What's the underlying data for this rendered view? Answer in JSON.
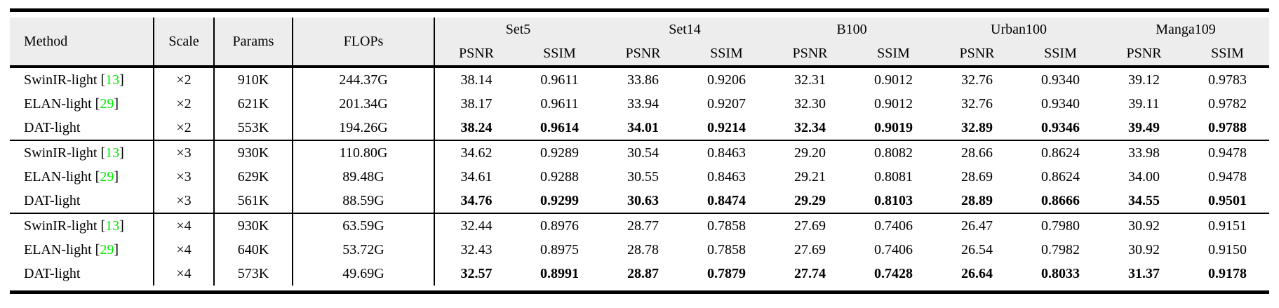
{
  "page": {
    "background": "#ffffff"
  },
  "colors": {
    "header_bg": "#ededed",
    "rule": "#000000",
    "text": "#000000",
    "citation_green": "#00ee00"
  },
  "table": {
    "columns": {
      "method": "Method",
      "scale": "Scale",
      "params": "Params",
      "flops": "FLOPs"
    },
    "dataset_groups": [
      "Set5",
      "Set14",
      "B100",
      "Urban100",
      "Manga109"
    ],
    "metrics": [
      "PSNR",
      "SSIM"
    ],
    "groups": [
      {
        "scale_factor": "×2",
        "rows": [
          {
            "method": "SwinIR-light",
            "cite_open": " [",
            "cite": "13",
            "cite_close": "]",
            "scale": "×2",
            "params": "910K",
            "flops": "244.37G",
            "best": false,
            "values": [
              "38.14",
              "0.9611",
              "33.86",
              "0.9206",
              "32.31",
              "0.9012",
              "32.76",
              "0.9340",
              "39.12",
              "0.9783"
            ]
          },
          {
            "method": "ELAN-light",
            "cite_open": " [",
            "cite": "29",
            "cite_close": "]",
            "scale": "×2",
            "params": "621K",
            "flops": "201.34G",
            "best": false,
            "values": [
              "38.17",
              "0.9611",
              "33.94",
              "0.9207",
              "32.30",
              "0.9012",
              "32.76",
              "0.9340",
              "39.11",
              "0.9782"
            ]
          },
          {
            "method": "DAT-light",
            "scale": "×2",
            "params": "553K",
            "flops": "194.26G",
            "best": true,
            "values": [
              "38.24",
              "0.9614",
              "34.01",
              "0.9214",
              "32.34",
              "0.9019",
              "32.89",
              "0.9346",
              "39.49",
              "0.9788"
            ]
          }
        ]
      },
      {
        "scale_factor": "×3",
        "rows": [
          {
            "method": "SwinIR-light",
            "cite_open": " [",
            "cite": "13",
            "cite_close": "]",
            "scale": "×3",
            "params": "930K",
            "flops": "110.80G",
            "best": false,
            "values": [
              "34.62",
              "0.9289",
              "30.54",
              "0.8463",
              "29.20",
              "0.8082",
              "28.66",
              "0.8624",
              "33.98",
              "0.9478"
            ]
          },
          {
            "method": "ELAN-light",
            "cite_open": " [",
            "cite": "29",
            "cite_close": "]",
            "scale": "×3",
            "params": "629K",
            "flops": "89.48G",
            "best": false,
            "values": [
              "34.61",
              "0.9288",
              "30.55",
              "0.8463",
              "29.21",
              "0.8081",
              "28.69",
              "0.8624",
              "34.00",
              "0.9478"
            ]
          },
          {
            "method": "DAT-light",
            "scale": "×3",
            "params": "561K",
            "flops": "88.59G",
            "best": true,
            "values": [
              "34.76",
              "0.9299",
              "30.63",
              "0.8474",
              "29.29",
              "0.8103",
              "28.89",
              "0.8666",
              "34.55",
              "0.9501"
            ]
          }
        ]
      },
      {
        "scale_factor": "×4",
        "rows": [
          {
            "method": "SwinIR-light",
            "cite_open": " [",
            "cite": "13",
            "cite_close": "]",
            "scale": "×4",
            "params": "930K",
            "flops": "63.59G",
            "best": false,
            "values": [
              "32.44",
              "0.8976",
              "28.77",
              "0.7858",
              "27.69",
              "0.7406",
              "26.47",
              "0.7980",
              "30.92",
              "0.9151"
            ]
          },
          {
            "method": "ELAN-light",
            "cite_open": " [",
            "cite": "29",
            "cite_close": "]",
            "scale": "×4",
            "params": "640K",
            "flops": "53.72G",
            "best": false,
            "values": [
              "32.43",
              "0.8975",
              "28.78",
              "0.7858",
              "27.69",
              "0.7406",
              "26.54",
              "0.7982",
              "30.92",
              "0.9150"
            ]
          },
          {
            "method": "DAT-light",
            "scale": "×4",
            "params": "573K",
            "flops": "49.69G",
            "best": true,
            "values": [
              "32.57",
              "0.8991",
              "28.87",
              "0.7879",
              "27.74",
              "0.7428",
              "26.64",
              "0.8033",
              "31.37",
              "0.9178"
            ]
          }
        ]
      }
    ]
  }
}
